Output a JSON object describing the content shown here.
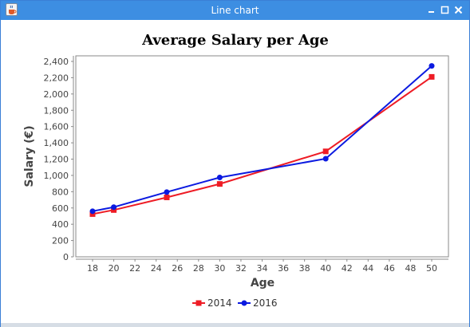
{
  "window": {
    "title": "Line chart",
    "app_icon": "java-cup-icon",
    "controls": {
      "minimize_icon": "minimize-icon",
      "maximize_icon": "maximize-icon",
      "close_icon": "close-icon"
    }
  },
  "chart_data": {
    "type": "line",
    "title": "Average Salary per Age",
    "xlabel": "Age",
    "ylabel": "Salary (€)",
    "xlim": [
      18,
      50
    ],
    "ylim": [
      0,
      2400
    ],
    "xticks": [
      18,
      20,
      22,
      24,
      26,
      28,
      30,
      32,
      34,
      36,
      38,
      40,
      42,
      44,
      46,
      48,
      50
    ],
    "yticks": [
      0,
      200,
      400,
      600,
      800,
      1000,
      1200,
      1400,
      1600,
      1800,
      2000,
      2200,
      2400
    ],
    "yticklabels": [
      "0",
      "200",
      "400",
      "600",
      "800",
      "1,000",
      "1,200",
      "1,400",
      "1,600",
      "1,800",
      "2,000",
      "2,200",
      "2,400"
    ],
    "grid": false,
    "legend": "bottom",
    "series": [
      {
        "name": "2014",
        "color": "#ee1c25",
        "marker": "square",
        "x": [
          18,
          20,
          25,
          30,
          40,
          50
        ],
        "y": [
          525,
          575,
          730,
          895,
          1295,
          2210
        ]
      },
      {
        "name": "2016",
        "color": "#0b1ae0",
        "marker": "circle",
        "x": [
          18,
          20,
          25,
          30,
          40,
          50
        ],
        "y": [
          560,
          610,
          795,
          975,
          1205,
          2345
        ]
      }
    ]
  }
}
